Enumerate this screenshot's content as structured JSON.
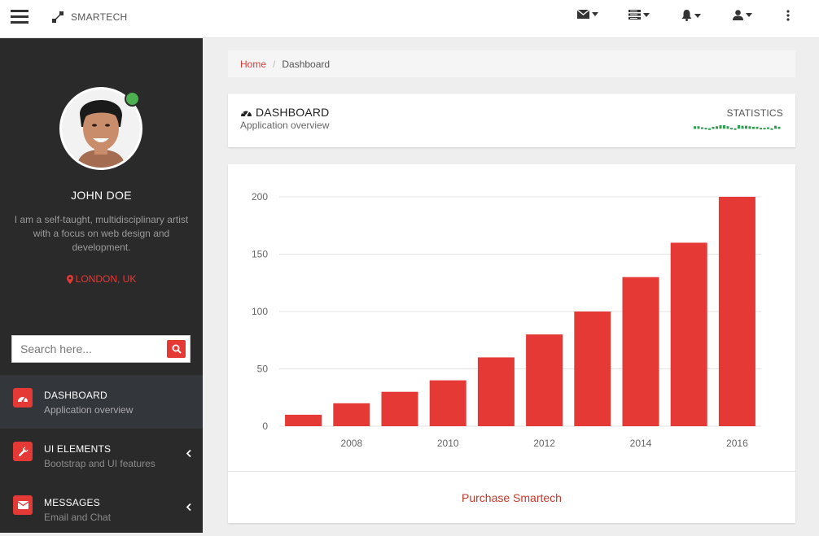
{
  "topbar": {
    "brand": "SMARTECH",
    "icons": [
      "menu-icon",
      "envelope-icon",
      "list-icon",
      "bell-icon",
      "user-icon",
      "more-vertical-icon"
    ]
  },
  "sidebar": {
    "user_name": "JOHN DOE",
    "user_bio": "I am a self-taught, multidisciplinary artist with a focus on web design and development.",
    "location": "LONDON, UK",
    "search_placeholder": "Search here...",
    "items": [
      {
        "label": "DASHBOARD",
        "sub": "Application overview",
        "icon": "dashboard-icon",
        "active": true
      },
      {
        "label": "UI ELEMENTS",
        "sub": "Bootstrap and UI features",
        "icon": "wrench-icon",
        "active": false
      },
      {
        "label": "MESSAGES",
        "sub": "Email and Chat",
        "icon": "envelope-icon",
        "active": false
      }
    ]
  },
  "breadcrumb": {
    "home": "Home",
    "current": "Dashboard"
  },
  "header": {
    "title": "DASHBOARD",
    "subtitle": "Application overview",
    "stats_label": "STATISTICS"
  },
  "colors": {
    "accent": "#e53935",
    "sidebar": "#2a2a2a",
    "sparkline": "#2e9e4f",
    "online": "#4caf50"
  },
  "sparkline_values": [
    6,
    6,
    4,
    3,
    2,
    5,
    6,
    8,
    8,
    6,
    3,
    2,
    8,
    7,
    7,
    6,
    5,
    5,
    3,
    3,
    4,
    2,
    7,
    5
  ],
  "chart_data": {
    "type": "bar",
    "x": [
      2007,
      2008,
      2009,
      2010,
      2011,
      2012,
      2013,
      2014,
      2015,
      2016
    ],
    "values": [
      10,
      20,
      30,
      40,
      60,
      80,
      100,
      130,
      160,
      200
    ],
    "xticks": [
      "2008",
      "2010",
      "2012",
      "2014",
      "2016"
    ],
    "yticks": [
      "0",
      "50",
      "100",
      "150",
      "200"
    ],
    "ylim": [
      0,
      200
    ],
    "title": "",
    "xlabel": "",
    "ylabel": "",
    "grid": true
  },
  "footer_link": "Purchase Smartech"
}
